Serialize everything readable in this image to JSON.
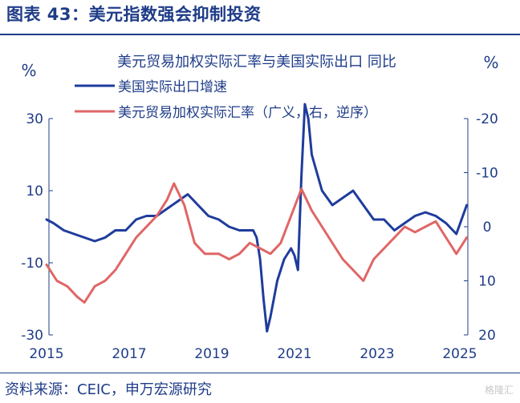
{
  "figure": {
    "title": "图表 43：美元指数强会抑制投资",
    "source": "资料来源：CEIC，申万宏源研究",
    "watermark": "格隆汇"
  },
  "colors": {
    "brand": "#1f3c88",
    "series1": "#1f3c9c",
    "series2": "#e06666",
    "axis": "#1f3c88"
  },
  "chart_data": {
    "type": "line",
    "title": "美元贸易加权实际汇率与美国实际出口 同比",
    "y_left": {
      "label": "%",
      "ticks": [
        30,
        10,
        -10,
        -30
      ],
      "range": [
        -30,
        30
      ]
    },
    "y_right": {
      "label": "%",
      "ticks": [
        -20,
        -10,
        0,
        10,
        20
      ],
      "range": [
        20,
        -20
      ],
      "inverted": true
    },
    "x_axis": {
      "ticks": [
        "2015",
        "2017",
        "2019",
        "2021",
        "2023",
        "2025"
      ],
      "range": [
        "2015-01",
        "2025-03"
      ]
    },
    "legend": "top-left",
    "grid": false,
    "series": [
      {
        "name": "美国实际出口增速",
        "axis": "left",
        "points": [
          [
            "2015-01",
            2
          ],
          [
            "2015-03",
            1
          ],
          [
            "2015-06",
            -1
          ],
          [
            "2015-09",
            -2
          ],
          [
            "2015-12",
            -3
          ],
          [
            "2016-03",
            -4
          ],
          [
            "2016-06",
            -3
          ],
          [
            "2016-09",
            -1
          ],
          [
            "2016-12",
            -1
          ],
          [
            "2017-03",
            2
          ],
          [
            "2017-06",
            3
          ],
          [
            "2017-09",
            3
          ],
          [
            "2017-12",
            5
          ],
          [
            "2018-03",
            7
          ],
          [
            "2018-06",
            9
          ],
          [
            "2018-09",
            6
          ],
          [
            "2018-12",
            3
          ],
          [
            "2019-03",
            2
          ],
          [
            "2019-06",
            0
          ],
          [
            "2019-09",
            -1
          ],
          [
            "2019-12",
            -1
          ],
          [
            "2020-01",
            -1
          ],
          [
            "2020-02",
            -3
          ],
          [
            "2020-03",
            -9
          ],
          [
            "2020-04",
            -20
          ],
          [
            "2020-05",
            -29
          ],
          [
            "2020-06",
            -25
          ],
          [
            "2020-08",
            -15
          ],
          [
            "2020-10",
            -9
          ],
          [
            "2020-12",
            -6
          ],
          [
            "2021-01",
            -8
          ],
          [
            "2021-02",
            -12
          ],
          [
            "2021-03",
            14
          ],
          [
            "2021-04",
            34
          ],
          [
            "2021-05",
            30
          ],
          [
            "2021-06",
            20
          ],
          [
            "2021-09",
            10
          ],
          [
            "2021-12",
            6
          ],
          [
            "2022-03",
            8
          ],
          [
            "2022-06",
            10
          ],
          [
            "2022-09",
            6
          ],
          [
            "2022-12",
            2
          ],
          [
            "2023-03",
            2
          ],
          [
            "2023-06",
            -1
          ],
          [
            "2023-09",
            1
          ],
          [
            "2023-12",
            3
          ],
          [
            "2024-03",
            4
          ],
          [
            "2024-06",
            3
          ],
          [
            "2024-09",
            1
          ],
          [
            "2024-12",
            -2
          ],
          [
            "2025-03",
            6
          ]
        ]
      },
      {
        "name": "美元贸易加权实际汇率（广义，右，逆序）",
        "axis": "right",
        "points": [
          [
            "2015-01",
            7
          ],
          [
            "2015-04",
            10
          ],
          [
            "2015-07",
            11
          ],
          [
            "2015-10",
            13
          ],
          [
            "2015-12",
            14
          ],
          [
            "2016-03",
            11
          ],
          [
            "2016-06",
            10
          ],
          [
            "2016-09",
            8
          ],
          [
            "2016-12",
            5
          ],
          [
            "2017-03",
            2
          ],
          [
            "2017-06",
            0
          ],
          [
            "2017-09",
            -2
          ],
          [
            "2017-12",
            -5
          ],
          [
            "2018-02",
            -8
          ],
          [
            "2018-05",
            -4
          ],
          [
            "2018-08",
            3
          ],
          [
            "2018-11",
            5
          ],
          [
            "2019-03",
            5
          ],
          [
            "2019-06",
            6
          ],
          [
            "2019-09",
            5
          ],
          [
            "2019-12",
            3
          ],
          [
            "2020-03",
            4
          ],
          [
            "2020-06",
            5
          ],
          [
            "2020-09",
            3
          ],
          [
            "2020-12",
            -2
          ],
          [
            "2021-03",
            -7
          ],
          [
            "2021-06",
            -3
          ],
          [
            "2021-09",
            0
          ],
          [
            "2021-12",
            3
          ],
          [
            "2022-03",
            6
          ],
          [
            "2022-06",
            8
          ],
          [
            "2022-09",
            10
          ],
          [
            "2022-12",
            6
          ],
          [
            "2023-03",
            4
          ],
          [
            "2023-06",
            2
          ],
          [
            "2023-09",
            0
          ],
          [
            "2023-12",
            1
          ],
          [
            "2024-03",
            0
          ],
          [
            "2024-06",
            -1
          ],
          [
            "2024-09",
            2
          ],
          [
            "2024-12",
            5
          ],
          [
            "2025-03",
            2
          ]
        ]
      }
    ]
  }
}
